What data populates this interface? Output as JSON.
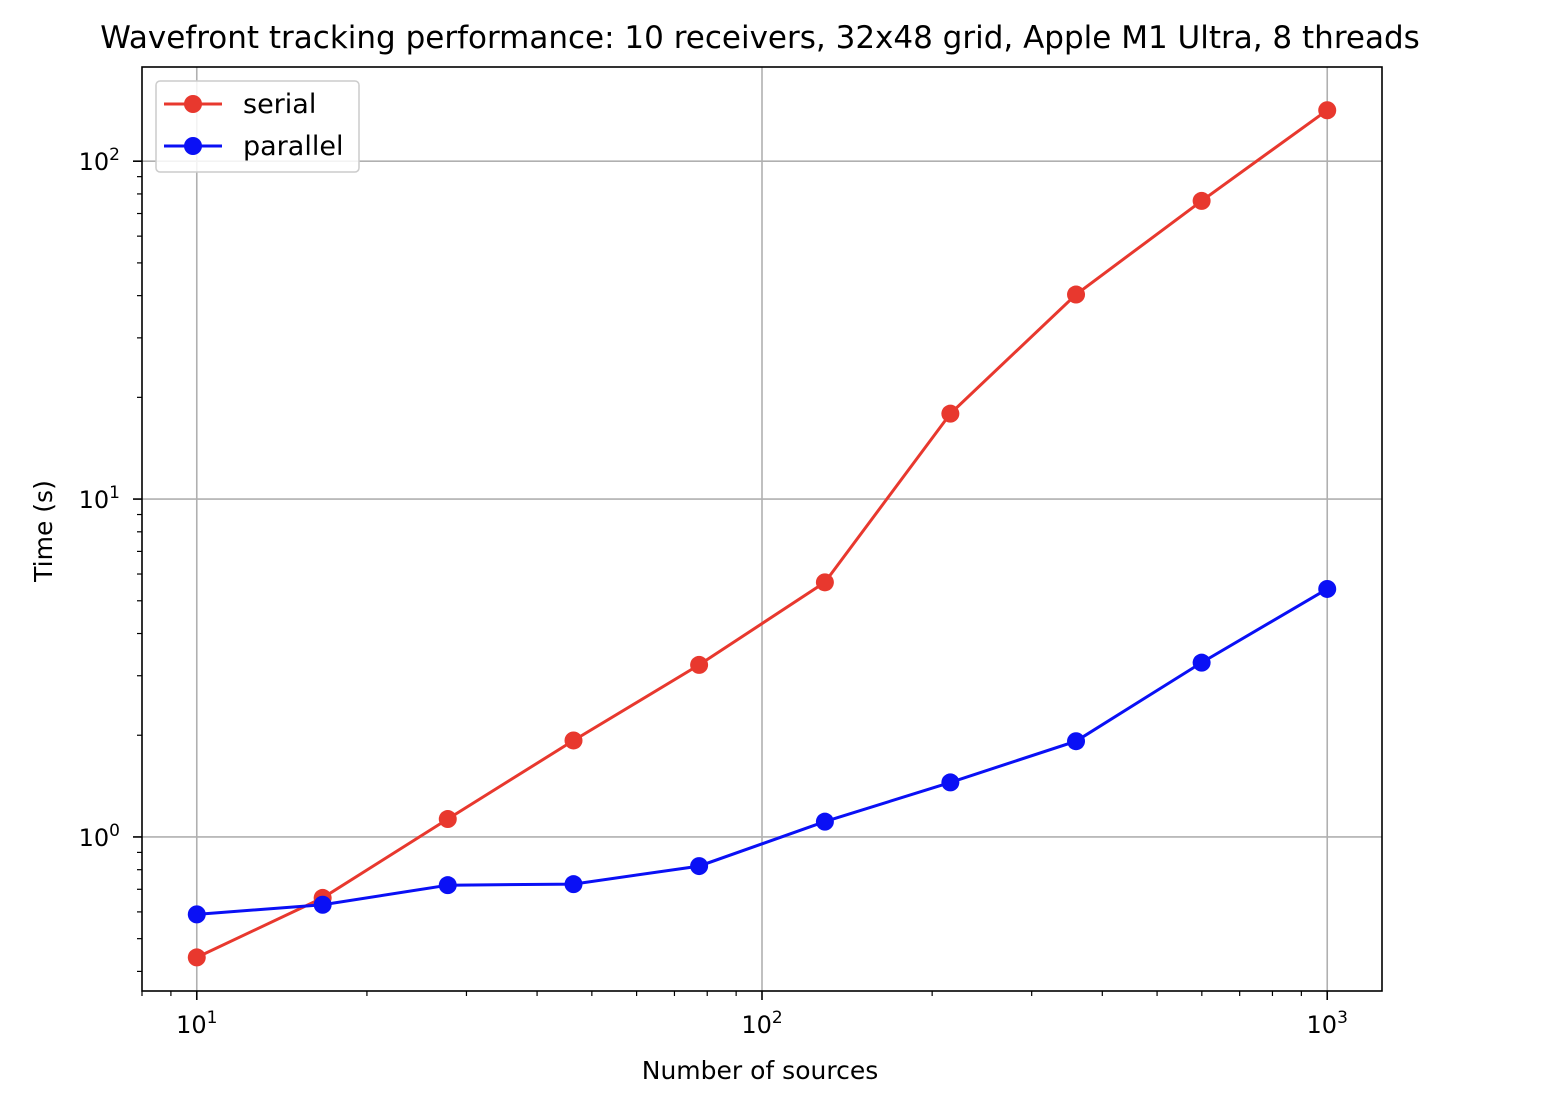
{
  "chart_data": {
    "type": "line",
    "title": "Wavefront tracking performance: 10 receivers, 32x48 grid, Apple M1 Ultra, 8 threads",
    "xlabel": "Number of sources",
    "ylabel": "Time (s)",
    "xscale": "log",
    "yscale": "log",
    "xlim": [
      8,
      1250
    ],
    "ylim": [
      0.35,
      190
    ],
    "grid": true,
    "legend_position": "top-left",
    "x_ticks": [
      {
        "value": 10,
        "base": "10",
        "exp": "1"
      },
      {
        "value": 100,
        "base": "10",
        "exp": "2"
      },
      {
        "value": 1000,
        "base": "10",
        "exp": "3"
      }
    ],
    "y_ticks": [
      {
        "value": 1,
        "base": "10",
        "exp": "0"
      },
      {
        "value": 10,
        "base": "10",
        "exp": "1"
      },
      {
        "value": 100,
        "base": "10",
        "exp": "2"
      }
    ],
    "x": [
      10,
      16.7,
      27.8,
      46.4,
      77.4,
      129.2,
      215.4,
      359.4,
      599.5,
      1000
    ],
    "series": [
      {
        "name": "serial",
        "color": "#e8382e",
        "values": [
          0.44,
          0.66,
          1.13,
          1.93,
          3.23,
          5.67,
          17.9,
          40.3,
          76.3,
          141.5
        ]
      },
      {
        "name": "parallel",
        "color": "#0a10f5",
        "values": [
          0.59,
          0.63,
          0.72,
          0.725,
          0.82,
          1.11,
          1.45,
          1.92,
          3.28,
          5.42
        ]
      }
    ]
  }
}
